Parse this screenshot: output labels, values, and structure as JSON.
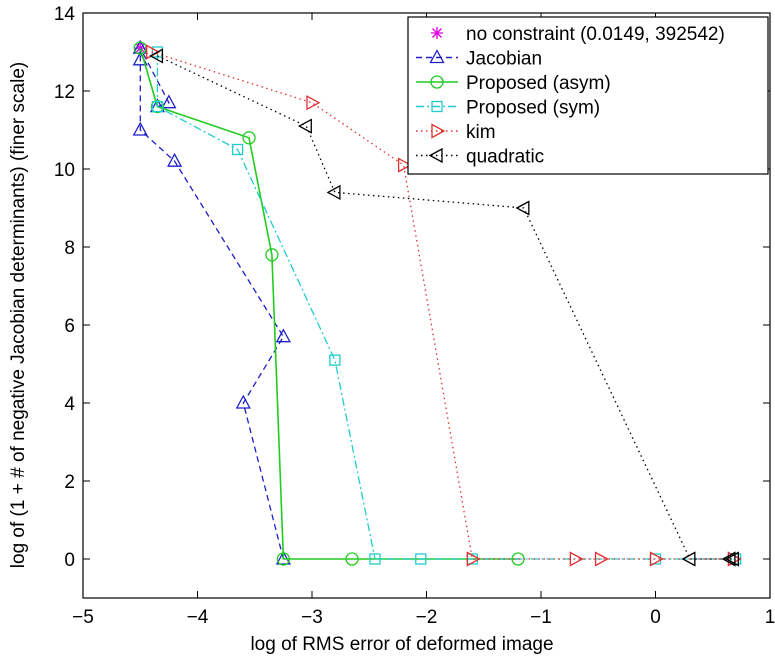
{
  "chart_data": {
    "type": "line",
    "title": "",
    "xlabel": "log of RMS error of deformed image",
    "ylabel": "log of (1 + # of negative Jacobian determinants) (finer scale)",
    "xlim": [
      -5,
      1
    ],
    "ylim": [
      -1,
      14
    ],
    "xticks": [
      -5,
      -4,
      -3,
      -2,
      -1,
      0,
      1
    ],
    "yticks": [
      0,
      2,
      4,
      6,
      8,
      10,
      12,
      14
    ],
    "xtick_labels": [
      "−5",
      "−4",
      "−3",
      "−2",
      "−1",
      "0",
      "1"
    ],
    "ytick_labels": [
      "0",
      "2",
      "4",
      "6",
      "8",
      "10",
      "12",
      "14"
    ],
    "grid": false,
    "legend_position": "top-right",
    "series": [
      {
        "name": "no constraint (0.0149, 392542)",
        "color": "#e000e0",
        "marker": "asterisk",
        "dash": "none",
        "points": [
          [
            -4.5,
            13.1
          ]
        ]
      },
      {
        "name": "Jacobian",
        "color": "#2020c8",
        "marker": "triangle-up",
        "dash": "dashed",
        "points": [
          [
            -3.25,
            0.0
          ],
          [
            -3.6,
            4.0
          ],
          [
            -3.25,
            5.7
          ],
          [
            -4.2,
            10.2
          ],
          [
            -4.5,
            11.0
          ],
          [
            -4.5,
            12.8
          ],
          [
            -4.5,
            13.1
          ],
          [
            -4.25,
            11.7
          ],
          [
            -4.35,
            11.6
          ]
        ]
      },
      {
        "name": "Proposed (asym)",
        "color": "#22cc22",
        "marker": "circle",
        "dash": "solid",
        "points": [
          [
            -4.5,
            13.1
          ],
          [
            -4.35,
            11.6
          ],
          [
            -3.55,
            10.8
          ],
          [
            -3.35,
            7.8
          ],
          [
            -3.25,
            0.0
          ],
          [
            -2.65,
            0.0
          ],
          [
            -1.2,
            0.0
          ]
        ]
      },
      {
        "name": "Proposed (sym)",
        "color": "#22cccc",
        "marker": "square",
        "dash": "dashdot",
        "points": [
          [
            -4.35,
            13.0
          ],
          [
            -4.35,
            11.6
          ],
          [
            -3.65,
            10.5
          ],
          [
            -2.8,
            5.1
          ],
          [
            -2.45,
            0.0
          ],
          [
            -2.05,
            0.0
          ],
          [
            -1.6,
            0.0
          ],
          [
            0.0,
            0.0
          ],
          [
            0.7,
            0.0
          ]
        ]
      },
      {
        "name": "kim",
        "color": "#e03030",
        "marker": "triangle-right",
        "dash": "dotted",
        "points": [
          [
            -4.4,
            13.0
          ],
          [
            -3.0,
            11.7
          ],
          [
            -2.2,
            10.1
          ],
          [
            -1.6,
            0.0
          ],
          [
            -0.7,
            0.0
          ],
          [
            -0.48,
            0.0
          ],
          [
            0.0,
            0.0
          ],
          [
            0.68,
            0.0
          ]
        ]
      },
      {
        "name": "quadratic",
        "color": "#000000",
        "marker": "triangle-left",
        "dash": "dotted",
        "points": [
          [
            -4.35,
            12.9
          ],
          [
            -3.05,
            11.1
          ],
          [
            -2.8,
            9.4
          ],
          [
            -1.15,
            9.0
          ],
          [
            0.3,
            0.0
          ],
          [
            0.65,
            0.0
          ],
          [
            0.68,
            0.0
          ]
        ]
      }
    ]
  }
}
